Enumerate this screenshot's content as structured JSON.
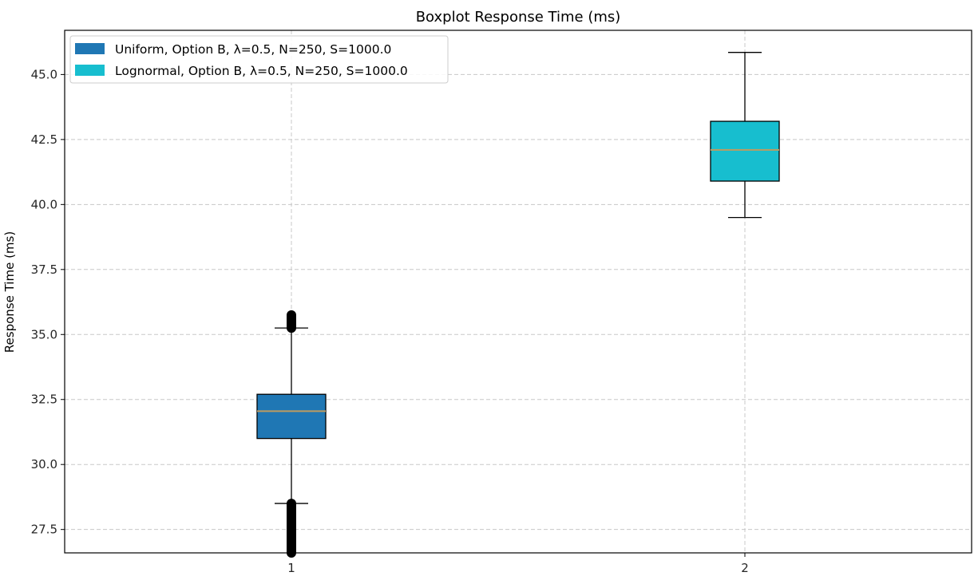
{
  "chart_data": {
    "type": "boxplot",
    "title": "Boxplot Response Time (ms)",
    "xlabel": "",
    "ylabel": "Response Time (ms)",
    "ylim": [
      26.6,
      46.7
    ],
    "yticks": [
      "27.5",
      "30.0",
      "32.5",
      "35.0",
      "37.5",
      "40.0",
      "42.5",
      "45.0"
    ],
    "ytick_values": [
      27.5,
      30.0,
      32.5,
      35.0,
      37.5,
      40.0,
      42.5,
      45.0
    ],
    "xlim": [
      0.5,
      2.5
    ],
    "xtick_labels": [
      "1",
      "2"
    ],
    "grid": true,
    "legend_position": "upper-left",
    "series": [
      {
        "name": "Uniform, Option B, λ=0.5, N=250, S=1000.0",
        "position": 1,
        "color": "#1f77b4",
        "whisker_low": 28.5,
        "q1": 31.0,
        "median": 32.05,
        "q3": 32.7,
        "whisker_high": 35.25,
        "outliers_low_range": [
          26.6,
          28.5
        ],
        "outliers_high_range": [
          35.25,
          35.75
        ]
      },
      {
        "name": "Lognormal, Option B, λ=0.5, N=250, S=1000.0",
        "position": 2,
        "color": "#17becf",
        "whisker_low": 39.5,
        "q1": 40.9,
        "median": 42.1,
        "q3": 43.2,
        "whisker_high": 45.85,
        "outliers_low_range": null,
        "outliers_high_range": null
      }
    ],
    "median_color": "#bf9b5f"
  }
}
